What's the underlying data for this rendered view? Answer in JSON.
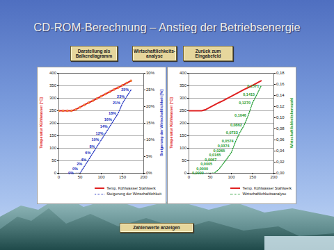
{
  "title": "CD-ROM-Berechnung – Anstieg der Betriebsenergie",
  "buttons": [
    "Darstellung als Balkendiagramm",
    "Wirtschaftlichkeits-analyse",
    "Zurück zum Eingabefeld"
  ],
  "footer_button": "Zahlenwerte anzeigen",
  "chart_data": [
    {
      "type": "line",
      "y_label": "Temperatur Kühlwasser [°C]",
      "y2_label": "Steigerung der Wirtschaftlichkeit [%]",
      "x": [
        0,
        10,
        20,
        30,
        40,
        50,
        60,
        70,
        80,
        90,
        100,
        110,
        120,
        130,
        140,
        150,
        160,
        170
      ],
      "xlim": [
        0,
        200
      ],
      "xticks": [
        0,
        50,
        100,
        150,
        200
      ],
      "ylim": [
        0,
        400
      ],
      "yticks": [
        0,
        50,
        100,
        150,
        200,
        250,
        300,
        350,
        400
      ],
      "y2lim": [
        0,
        30
      ],
      "y2ticks": [
        {
          "value": 0,
          "label": "0%"
        },
        {
          "value": 5,
          "label": "5%"
        },
        {
          "value": 10,
          "label": "10%"
        },
        {
          "value": 15,
          "label": "15%"
        },
        {
          "value": 20,
          "label": "20%"
        },
        {
          "value": 25,
          "label": "25%"
        },
        {
          "value": 30,
          "label": "30%"
        }
      ],
      "grid": true,
      "series": [
        {
          "name": "Temp. Kühlwasser Stahlwerk",
          "color": "#e02020",
          "marker": "circle",
          "values": [
            250,
            250,
            250,
            250,
            255,
            264,
            273,
            282,
            290,
            299,
            308,
            317,
            326,
            335,
            343,
            352,
            361,
            370
          ]
        },
        {
          "name": "Steigerung der Wirtschaftlichkeit",
          "color": "#2030c0",
          "axis": "y2",
          "line_style": "dotted",
          "data_labels": true,
          "values": [
            null,
            null,
            null,
            null,
            0,
            0,
            2,
            4,
            6,
            8,
            10,
            12,
            14,
            16,
            18,
            21,
            23,
            25
          ],
          "value_labels": [
            null,
            null,
            null,
            null,
            "0%",
            "0%",
            "2%",
            "4%",
            "6%",
            "8%",
            "10%",
            "12%",
            "14%",
            "16%",
            "18%",
            "21%",
            "23%",
            "25%"
          ]
        }
      ]
    },
    {
      "type": "line",
      "y_label": "Temperatur Kühlwasser [°C]",
      "y2_label": "Wirtschaftlichkeitskennzahl",
      "x": [
        0,
        10,
        20,
        30,
        40,
        50,
        60,
        70,
        80,
        90,
        100,
        110,
        120,
        130,
        140,
        150,
        160,
        170
      ],
      "xlim": [
        0,
        200
      ],
      "xticks": [
        0,
        50,
        100,
        150,
        200
      ],
      "ylim": [
        0,
        400
      ],
      "yticks": [
        0,
        50,
        100,
        150,
        200,
        250,
        300,
        350,
        400
      ],
      "y2lim": [
        0,
        0.18
      ],
      "y2ticks": [
        {
          "value": 0,
          "label": "0,00"
        },
        {
          "value": 0.02,
          "label": "0,02"
        },
        {
          "value": 0.04,
          "label": "0,04"
        },
        {
          "value": 0.06,
          "label": "0,06"
        },
        {
          "value": 0.08,
          "label": "0,08"
        },
        {
          "value": 0.1,
          "label": "0,10"
        },
        {
          "value": 0.12,
          "label": "0,12"
        },
        {
          "value": 0.14,
          "label": "0,14"
        },
        {
          "value": 0.16,
          "label": "0,16"
        },
        {
          "value": 0.18,
          "label": "0,18"
        }
      ],
      "grid": true,
      "series": [
        {
          "name": "Temp. Kühlwasser Stahlwerk",
          "color": "#e02020",
          "values": [
            250,
            250,
            250,
            250,
            255,
            264,
            273,
            282,
            290,
            299,
            308,
            317,
            326,
            335,
            343,
            352,
            361,
            370
          ]
        },
        {
          "name": "Wirtschaftlichkeitsanalyse",
          "color": "#1a9a2a",
          "axis": "y2",
          "line_style": "dotted",
          "data_labels": true,
          "values": [
            null,
            null,
            null,
            null,
            0,
            0,
            0.0005,
            0.0067,
            0.0165,
            0.0265,
            0.0374,
            0.0574,
            0.0733,
            0.0862,
            0.1046,
            0.127,
            0.1415,
            0.1571
          ],
          "value_labels": [
            null,
            null,
            null,
            null,
            "0,0000",
            "0,0000",
            "0,0005",
            "0,0067",
            "0,0165",
            "0,0265",
            "0,0374",
            "0,0574",
            "0,0733",
            "0,0862",
            "0,1046",
            "0,1270",
            "0,1415",
            "0,1571"
          ]
        }
      ]
    }
  ]
}
